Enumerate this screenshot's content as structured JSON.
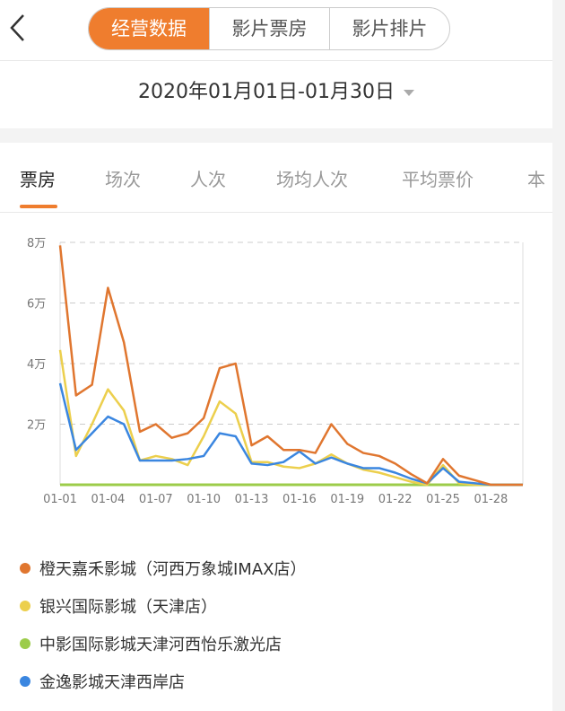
{
  "header": {
    "back_icon": "chevron-left-icon",
    "segments": [
      "经营数据",
      "影片票房",
      "影片排片"
    ],
    "active_segment": 0
  },
  "date_range": "2020年01月01日-01月30日",
  "tabs": [
    "票房",
    "场次",
    "人次",
    "场均人次",
    "平均票价",
    "本"
  ],
  "active_tab": 0,
  "chart_data": {
    "type": "line",
    "x": [
      "01-01",
      "01-02",
      "01-03",
      "01-04",
      "01-05",
      "01-06",
      "01-07",
      "01-08",
      "01-09",
      "01-10",
      "01-11",
      "01-12",
      "01-13",
      "01-14",
      "01-15",
      "01-16",
      "01-17",
      "01-18",
      "01-19",
      "01-20",
      "01-21",
      "01-22",
      "01-23",
      "01-24",
      "01-25",
      "01-26",
      "01-27",
      "01-28",
      "01-29",
      "01-30"
    ],
    "xticks": [
      "01-01",
      "01-04",
      "01-07",
      "01-10",
      "01-13",
      "01-16",
      "01-19",
      "01-22",
      "01-25",
      "01-28"
    ],
    "yticks": [
      {
        "v": 2,
        "label": "2万"
      },
      {
        "v": 4,
        "label": "4万"
      },
      {
        "v": 6,
        "label": "6万"
      },
      {
        "v": 8,
        "label": "8万"
      }
    ],
    "ylim": [
      0,
      8
    ],
    "yunit": "万",
    "grid": "horizontal-dashed",
    "legend": "bottom",
    "series": [
      {
        "name": "橙天嘉禾影城（河西万象城IMAX店）",
        "color": "#e0762f",
        "values": [
          7.9,
          2.95,
          3.3,
          6.5,
          4.7,
          1.75,
          2.0,
          1.55,
          1.7,
          2.2,
          3.85,
          4.0,
          1.3,
          1.6,
          1.15,
          1.15,
          1.05,
          2.0,
          1.35,
          1.05,
          0.95,
          0.7,
          0.35,
          0.05,
          0.85,
          0.3,
          0.15,
          0,
          0,
          0
        ]
      },
      {
        "name": "银兴国际影城（天津店）",
        "color": "#eccf4d",
        "values": [
          4.45,
          0.95,
          2.0,
          3.15,
          2.45,
          0.8,
          0.95,
          0.85,
          0.65,
          1.6,
          2.75,
          2.35,
          0.75,
          0.75,
          0.6,
          0.55,
          0.7,
          1.0,
          0.7,
          0.5,
          0.4,
          0.25,
          0.1,
          0,
          0.65,
          0.05,
          0,
          0,
          0,
          0
        ]
      },
      {
        "name": "中影国际影城天津河西怡乐激光店",
        "color": "#9ccc4a",
        "values": [
          0,
          0,
          0,
          0,
          0,
          0,
          0,
          0,
          0,
          0,
          0,
          0,
          0,
          0,
          0,
          0,
          0,
          0,
          0,
          0,
          0,
          0,
          0,
          0,
          0,
          0,
          0,
          0,
          0,
          0
        ]
      },
      {
        "name": "金逸影城天津西岸店",
        "color": "#3a86e0",
        "values": [
          3.35,
          1.15,
          1.7,
          2.25,
          2.0,
          0.8,
          0.8,
          0.8,
          0.85,
          0.95,
          1.7,
          1.6,
          0.7,
          0.65,
          0.75,
          1.1,
          0.7,
          0.9,
          0.7,
          0.55,
          0.55,
          0.4,
          0.2,
          0.05,
          0.55,
          0.1,
          0.05,
          0,
          0,
          0
        ]
      }
    ]
  }
}
